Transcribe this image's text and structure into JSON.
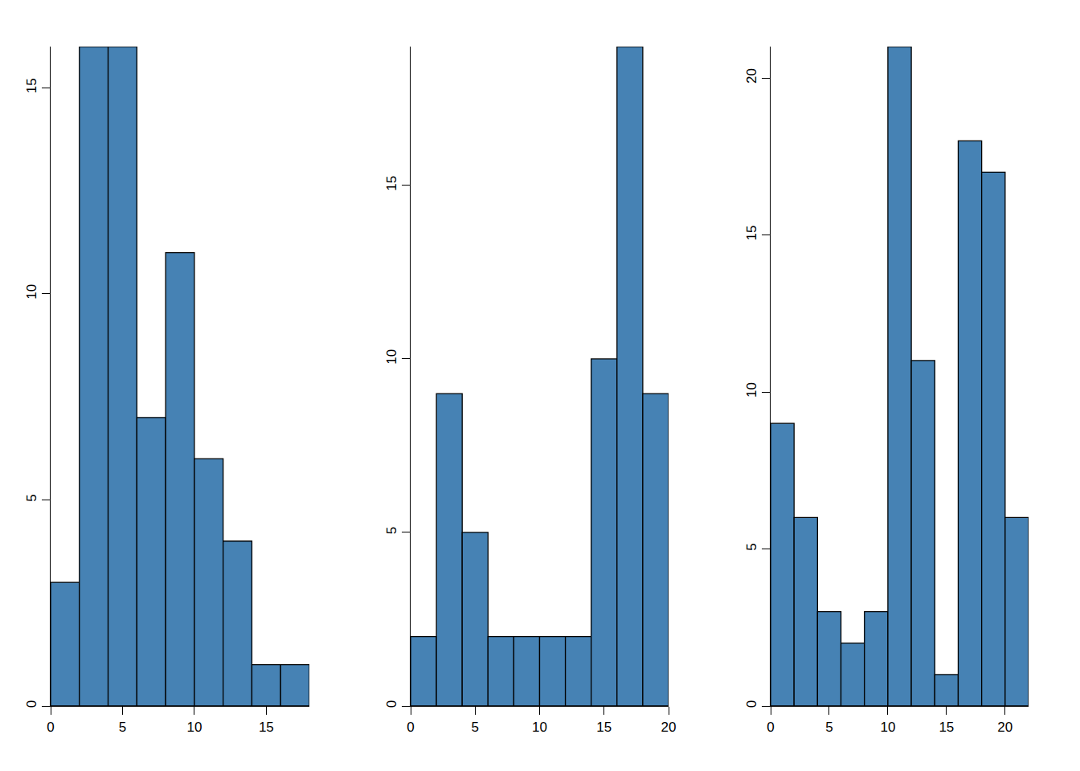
{
  "chart_data": [
    {
      "type": "histogram",
      "bins": [
        0,
        2,
        4,
        6,
        8,
        10,
        12,
        14,
        16,
        18
      ],
      "values": [
        3,
        16,
        16,
        7,
        11,
        6,
        4,
        1,
        1
      ],
      "color": "#4682b4",
      "xlim": [
        0,
        18
      ],
      "ylim": [
        0,
        16
      ],
      "xticks": [
        0,
        5,
        10,
        15
      ],
      "yticks": [
        0,
        5,
        10,
        15
      ],
      "grid": false
    },
    {
      "type": "histogram",
      "bins": [
        0,
        2,
        4,
        6,
        8,
        10,
        12,
        14,
        16,
        18,
        20
      ],
      "values": [
        2,
        9,
        5,
        2,
        2,
        2,
        2,
        10,
        19,
        9
      ],
      "color": "#4682b4",
      "xlim": [
        0,
        20
      ],
      "ylim": [
        0,
        19
      ],
      "xticks": [
        0,
        5,
        10,
        15,
        20
      ],
      "yticks": [
        0,
        5,
        10,
        15
      ],
      "grid": false
    },
    {
      "type": "histogram",
      "bins": [
        0,
        2,
        4,
        6,
        8,
        10,
        12,
        14,
        16,
        18,
        20,
        22
      ],
      "values": [
        9,
        6,
        3,
        2,
        3,
        21,
        11,
        1,
        18,
        17,
        6
      ],
      "color": "#4682b4",
      "xlim": [
        0,
        22
      ],
      "ylim": [
        0,
        21
      ],
      "xticks": [
        0,
        5,
        10,
        15,
        20
      ],
      "yticks": [
        0,
        5,
        10,
        15,
        20
      ],
      "grid": false
    }
  ]
}
